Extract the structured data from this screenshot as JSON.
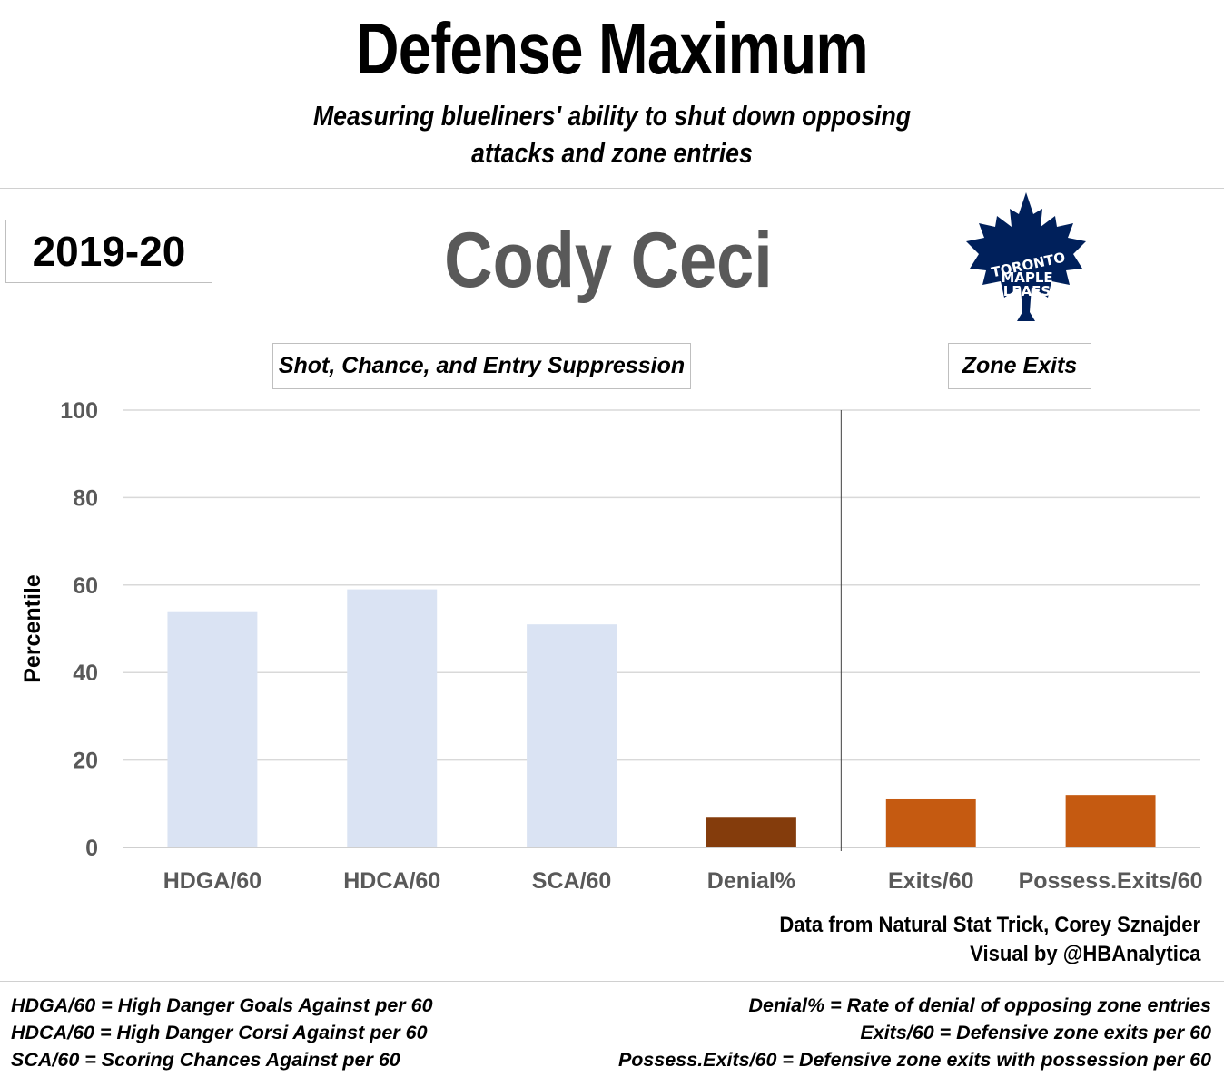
{
  "header": {
    "title": "Defense Maximum",
    "subtitle_line1": "Measuring blueliners' ability to shut down opposing",
    "subtitle_line2": "attacks and zone entries"
  },
  "season": "2019-20",
  "player": "Cody Ceci",
  "team_logo": {
    "icon": "maple-leaf-icon",
    "line1": "TORONTO",
    "line2": "MAPLE",
    "line3": "LEAFS",
    "color": "#00205B"
  },
  "groups": {
    "suppression": "Shot, Chance, and Entry Suppression",
    "exits": "Zone Exits"
  },
  "chart_data": {
    "type": "bar",
    "title": "",
    "xlabel": "",
    "ylabel": "Percentile",
    "ylim": [
      0,
      100
    ],
    "yticks": [
      0,
      20,
      40,
      60,
      80,
      100
    ],
    "grid": true,
    "categories": [
      "HDGA/60",
      "HDCA/60",
      "SCA/60",
      "Denial%",
      "Exits/60",
      "Possess.Exits/60"
    ],
    "values": [
      54,
      59,
      51,
      7,
      11,
      12
    ],
    "colors": [
      "#DAE3F3",
      "#DAE3F3",
      "#DAE3F3",
      "#843C0C",
      "#C55A11",
      "#C55A11"
    ]
  },
  "source": {
    "line1": "Data from Natural Stat Trick, Corey Sznajder",
    "line2": "Visual by @HBAnalytica"
  },
  "legend": {
    "left": [
      "HDGA/60 = High Danger Goals Against per 60",
      "HDCA/60 = High Danger Corsi Against per 60",
      "SCA/60 = Scoring Chances Against per  60"
    ],
    "right": [
      "Denial% = Rate of denial of opposing zone entries",
      "Exits/60 = Defensive zone exits per 60",
      "Possess.Exits/60 = Defensive zone exits with possession per 60"
    ]
  }
}
